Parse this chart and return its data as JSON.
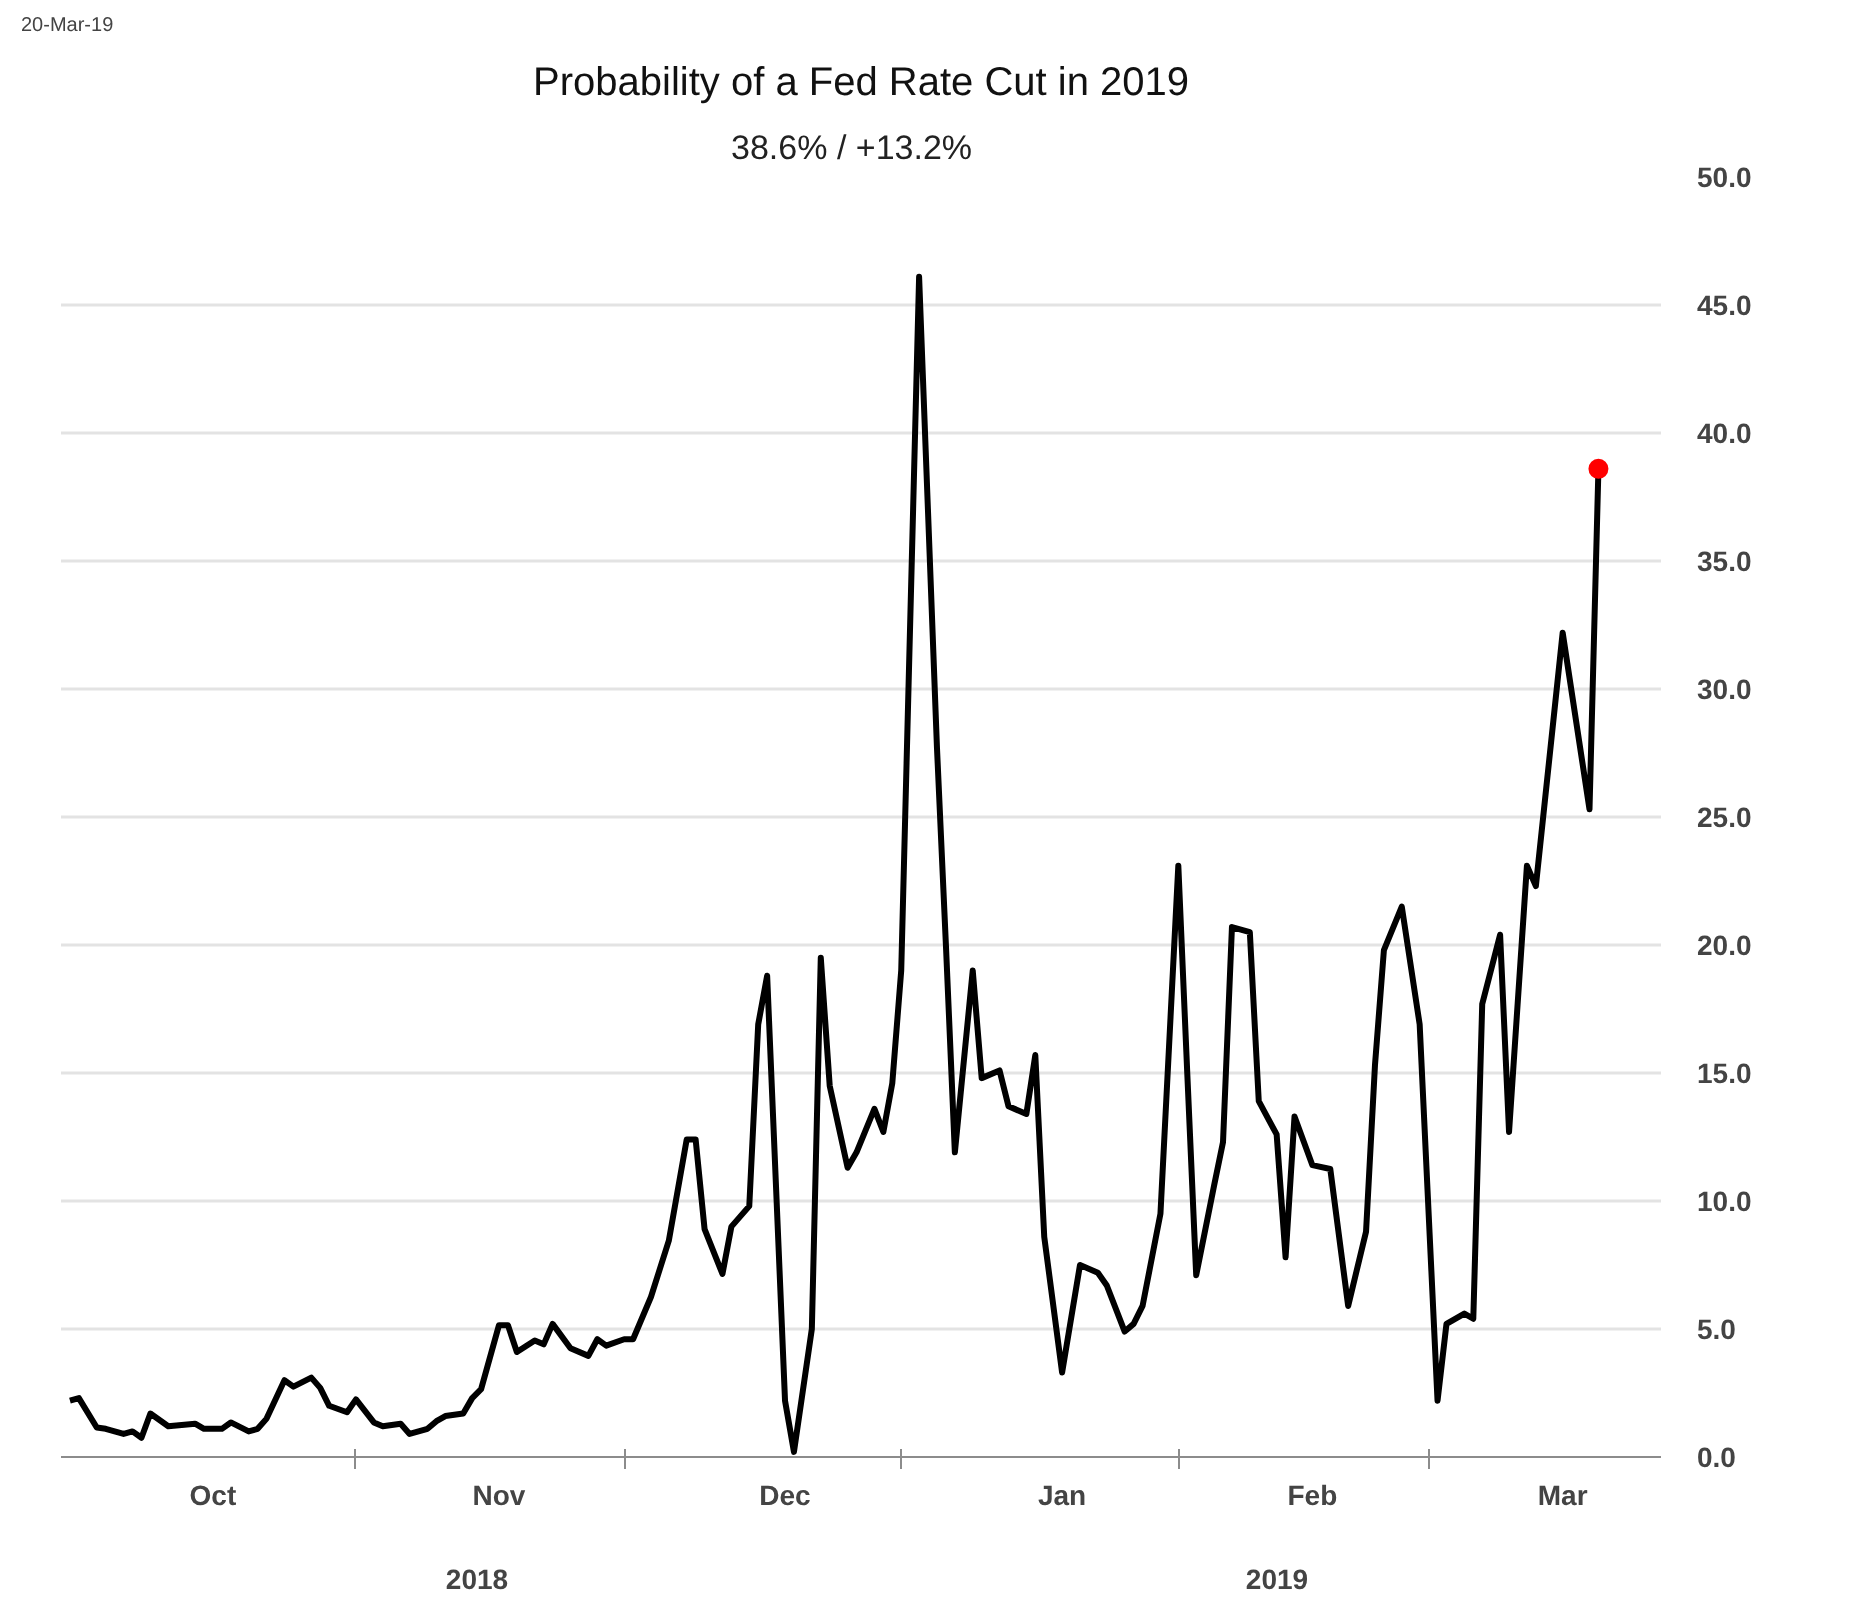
{
  "chart_data": {
    "type": "line",
    "title": "Probability of a Fed Rate Cut in 2019",
    "subtitle": "38.6%  /  +13.2%",
    "annotations": [
      "20-Mar-19",
      "2018",
      "2019"
    ],
    "xlim": [
      "2018-09-29",
      "2019-03-27"
    ],
    "xticks": [
      {
        "value": "2018-10-16",
        "label": "Oct"
      },
      {
        "value": "2018-11-17",
        "label": "Nov"
      },
      {
        "value": "2018-12-19",
        "label": "Dec"
      },
      {
        "value": "2019-01-19",
        "label": "Jan"
      },
      {
        "value": "2019-02-16",
        "label": "Feb"
      },
      {
        "value": "2019-03-16",
        "label": "Mar"
      },
      {
        "value": "2018-11-01",
        "label": null
      },
      {
        "value": "2018-12-01",
        "label": null
      },
      {
        "value": "2019-01-01",
        "label": null
      },
      {
        "value": "2019-02-01",
        "label": null
      },
      {
        "value": "2019-03-01",
        "label": null
      }
    ],
    "ylim": [
      0,
      50
    ],
    "yticks": [
      {
        "value": 0,
        "label": "0.0"
      },
      {
        "value": 5,
        "label": "5.0"
      },
      {
        "value": 10,
        "label": "10.0"
      },
      {
        "value": 15,
        "label": "15.0"
      },
      {
        "value": 20,
        "label": "20.0"
      },
      {
        "value": 25,
        "label": "25.0"
      },
      {
        "value": 30,
        "label": "30.0"
      },
      {
        "value": 35,
        "label": "35.0"
      },
      {
        "value": 40,
        "label": "40.0"
      },
      {
        "value": 45,
        "label": "45.0"
      },
      {
        "value": 50,
        "label": "50.0"
      }
    ],
    "grid": "y",
    "series": [
      {
        "color": "#000000",
        "x": [
          "2018-09-30",
          "2018-10-01",
          "2018-10-03",
          "2018-10-04",
          "2018-10-06",
          "2018-10-07",
          "2018-10-08",
          "2018-10-09",
          "2018-10-11",
          "2018-10-14",
          "2018-10-15",
          "2018-10-17",
          "2018-10-18",
          "2018-10-20",
          "2018-10-21",
          "2018-10-22",
          "2018-10-24",
          "2018-10-25",
          "2018-10-27",
          "2018-10-28",
          "2018-10-29",
          "2018-10-31",
          "2018-11-01",
          "2018-11-03",
          "2018-11-04",
          "2018-11-06",
          "2018-11-07",
          "2018-11-09",
          "2018-11-10",
          "2018-11-11",
          "2018-11-13",
          "2018-11-14",
          "2018-11-15",
          "2018-11-17",
          "2018-11-18",
          "2018-11-19",
          "2018-11-21",
          "2018-11-22",
          "2018-11-23",
          "2018-11-25",
          "2018-11-27",
          "2018-11-28",
          "2018-11-29",
          "2018-12-01",
          "2018-12-02",
          "2018-12-04",
          "2018-12-06",
          "2018-12-08",
          "2018-12-09",
          "2018-12-10",
          "2018-12-12",
          "2018-12-13",
          "2018-12-15",
          "2018-12-16",
          "2018-12-17",
          "2018-12-19",
          "2018-12-20",
          "2018-12-22",
          "2018-12-23",
          "2018-12-24",
          "2018-12-26",
          "2018-12-27",
          "2018-12-29",
          "2018-12-30",
          "2018-12-31",
          "2019-01-01",
          "2019-01-03",
          "2019-01-05",
          "2019-01-06",
          "2019-01-07",
          "2019-01-09",
          "2019-01-10",
          "2019-01-12",
          "2019-01-13",
          "2019-01-15",
          "2019-01-16",
          "2019-01-17",
          "2019-01-19",
          "2019-01-21",
          "2019-01-23",
          "2019-01-24",
          "2019-01-26",
          "2019-01-27",
          "2019-01-28",
          "2019-01-30",
          "2019-02-01",
          "2019-02-02",
          "2019-02-03",
          "2019-02-05",
          "2019-02-06",
          "2019-02-07",
          "2019-02-09",
          "2019-02-10",
          "2019-02-12",
          "2019-02-13",
          "2019-02-14",
          "2019-02-16",
          "2019-02-18",
          "2019-02-20",
          "2019-02-22",
          "2019-02-23",
          "2019-02-24",
          "2019-02-26",
          "2019-02-28",
          "2019-03-02",
          "2019-03-03",
          "2019-03-05",
          "2019-03-06",
          "2019-03-07",
          "2019-03-09",
          "2019-03-10",
          "2019-03-12",
          "2019-03-13",
          "2019-03-16",
          "2019-03-19",
          "2019-03-20"
        ],
        "values": [
          2.2,
          2.3,
          1.15,
          1.1,
          0.9,
          1.0,
          0.75,
          1.7,
          1.2,
          1.3,
          1.1,
          1.1,
          1.35,
          1.0,
          1.1,
          1.5,
          3.0,
          2.75,
          3.1,
          2.7,
          2.0,
          1.75,
          2.25,
          1.35,
          1.2,
          1.3,
          0.9,
          1.1,
          1.4,
          1.6,
          1.7,
          2.3,
          2.65,
          5.15,
          5.15,
          4.1,
          4.55,
          4.4,
          5.2,
          4.25,
          3.95,
          4.6,
          4.35,
          4.6,
          4.6,
          6.25,
          8.45,
          12.4,
          12.4,
          8.9,
          7.15,
          9.0,
          9.8,
          16.9,
          18.8,
          2.2,
          0.2,
          5.0,
          19.5,
          14.5,
          11.3,
          11.9,
          13.6,
          12.7,
          14.6,
          19.0,
          46.1,
          27.7,
          20.0,
          11.9,
          19.0,
          14.8,
          15.1,
          13.7,
          13.4,
          15.7,
          8.6,
          3.3,
          7.5,
          7.2,
          6.7,
          4.9,
          5.2,
          5.9,
          9.5,
          23.1,
          15.0,
          7.1,
          10.6,
          12.3,
          20.7,
          20.5,
          13.9,
          12.6,
          7.8,
          13.3,
          11.4,
          11.25,
          5.9,
          8.8,
          15.3,
          19.8,
          21.5,
          16.9,
          2.2,
          5.2,
          5.6,
          5.4,
          17.7,
          20.4,
          12.7,
          23.1,
          22.3,
          32.2,
          25.3,
          38.6
        ]
      },
      {
        "type": "scatter",
        "color": "#ff0000",
        "marker": "circle",
        "x": [
          "2019-03-20"
        ],
        "values": [
          38.6
        ]
      }
    ]
  }
}
